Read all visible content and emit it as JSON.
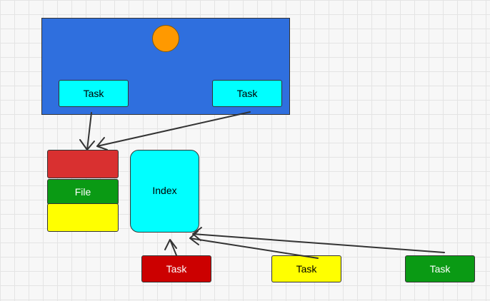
{
  "colors": {
    "container_fill": "#2f6fde",
    "circle_fill": "#ff9900",
    "cyan": "#00ffff",
    "red_task": "#cc0000",
    "red_stack": "#d93030",
    "yellow": "#ffff00",
    "green": "#0a9a14",
    "edge": "#333333",
    "text_dark": "#333333",
    "text_light": "#ffffff"
  },
  "nodes": {
    "top_task_left": {
      "label": "Task"
    },
    "top_task_right": {
      "label": "Task"
    },
    "file": {
      "label": "File"
    },
    "index": {
      "label": "Index"
    },
    "bottom_task_red": {
      "label": "Task"
    },
    "bottom_task_yellow": {
      "label": "Task"
    },
    "bottom_task_green": {
      "label": "Task"
    }
  }
}
